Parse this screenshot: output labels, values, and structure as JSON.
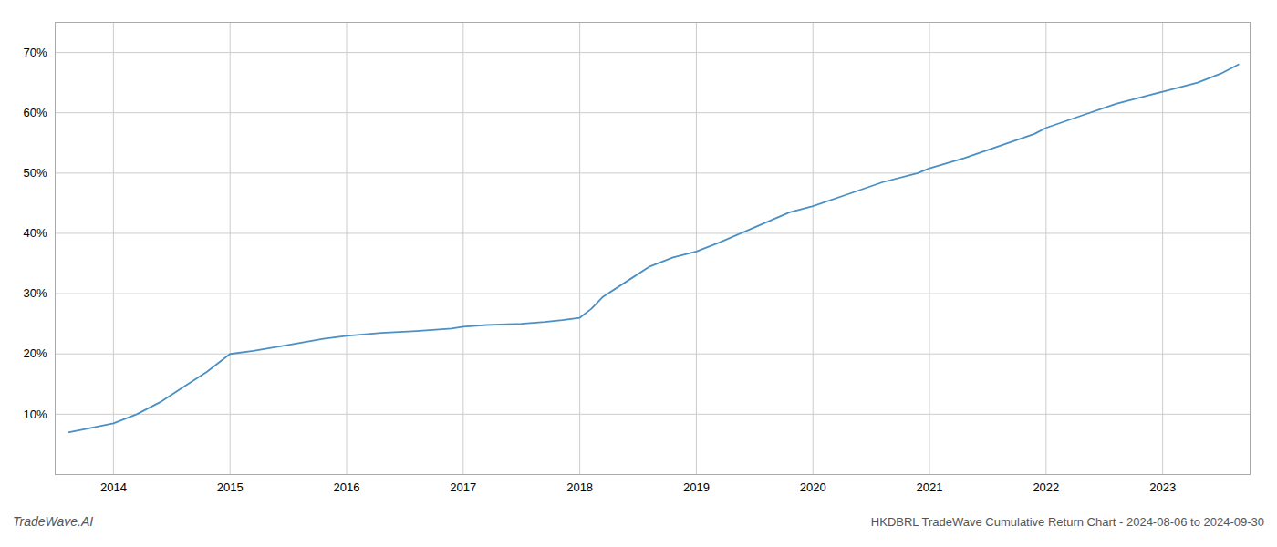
{
  "chart_data": {
    "type": "line",
    "title": "HKDBRL TradeWave Cumulative Return Chart - 2024-08-06 to 2024-09-30",
    "annotations": [
      "TradeWave.AI"
    ],
    "color": "#4a90c4",
    "grid": true,
    "x": [
      2013.62,
      2013.75,
      2014.0,
      2014.2,
      2014.4,
      2014.6,
      2014.8,
      2015.0,
      2015.2,
      2015.5,
      2015.8,
      2016.0,
      2016.3,
      2016.6,
      2016.9,
      2017.0,
      2017.2,
      2017.5,
      2017.7,
      2017.85,
      2018.0,
      2018.1,
      2018.2,
      2018.4,
      2018.6,
      2018.8,
      2019.0,
      2019.2,
      2019.5,
      2019.8,
      2020.0,
      2020.3,
      2020.6,
      2020.9,
      2021.0,
      2021.3,
      2021.6,
      2021.9,
      2022.0,
      2022.3,
      2022.6,
      2022.9,
      2023.0,
      2023.3,
      2023.5,
      2023.65
    ],
    "values": [
      7.0,
      7.5,
      8.5,
      10.0,
      12.0,
      14.5,
      17.0,
      20.0,
      20.5,
      21.5,
      22.5,
      23.0,
      23.5,
      23.8,
      24.2,
      24.5,
      24.8,
      25.0,
      25.3,
      25.6,
      26.0,
      27.5,
      29.5,
      32.0,
      34.5,
      36.0,
      37.0,
      38.5,
      41.0,
      43.5,
      44.5,
      46.5,
      48.5,
      50.0,
      50.8,
      52.5,
      54.5,
      56.5,
      57.5,
      59.5,
      61.5,
      63.0,
      63.5,
      65.0,
      66.5,
      68.0
    ],
    "xlim": [
      2013.5,
      2023.75
    ],
    "xticks": [
      2014,
      2015,
      2016,
      2017,
      2018,
      2019,
      2020,
      2021,
      2022,
      2023
    ],
    "ylim": [
      0,
      75
    ],
    "yticks": [
      {
        "value": 10,
        "label": "10%"
      },
      {
        "value": 20,
        "label": "20%"
      },
      {
        "value": 30,
        "label": "30%"
      },
      {
        "value": 40,
        "label": "40%"
      },
      {
        "value": 50,
        "label": "50%"
      },
      {
        "value": 60,
        "label": "60%"
      },
      {
        "value": 70,
        "label": "70%"
      }
    ]
  }
}
